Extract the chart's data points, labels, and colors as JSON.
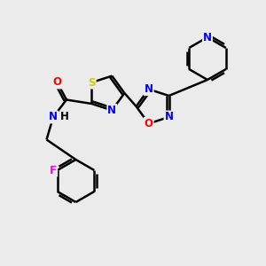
{
  "background_color": "#ebebeb",
  "bond_color": "#000000",
  "bond_width": 1.8,
  "atom_S_color": "#cccc00",
  "atom_N_color": "#0000ff",
  "atom_O_color": "#ff0000",
  "atom_F_color": "#ff00ff",
  "atom_C_color": "#000000",
  "font_size": 8.5,
  "xlim": [
    0,
    10
  ],
  "ylim": [
    0,
    10
  ]
}
